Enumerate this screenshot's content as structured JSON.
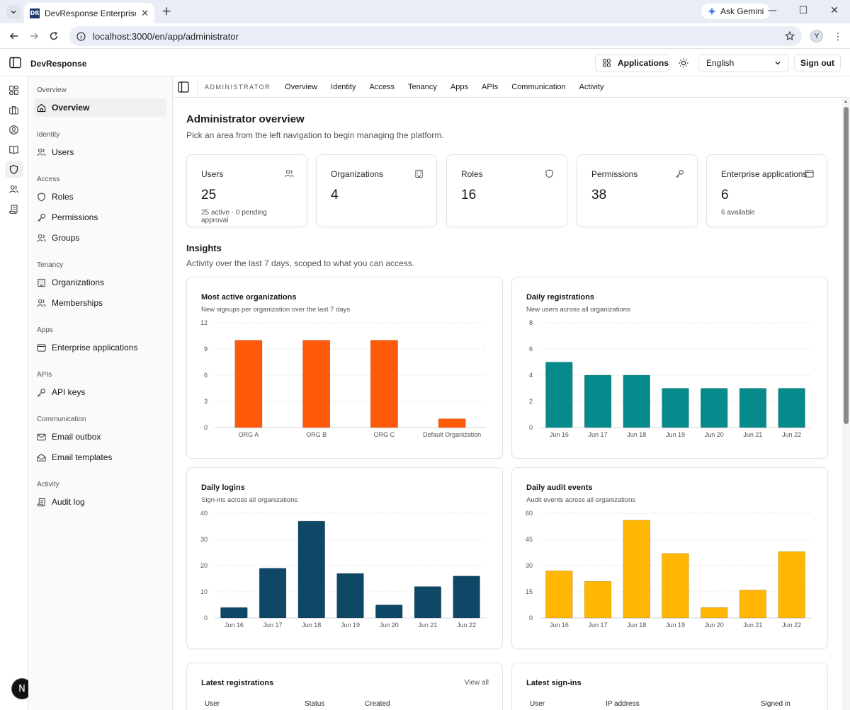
{
  "browser": {
    "tab_title": "DevResponse Enterprise",
    "favicon_text": "DR",
    "gemini_label": "Ask Gemini",
    "url": "localhost:3000/en/app/administrator",
    "profile_initial": "Y"
  },
  "header": {
    "brand": "DevResponse",
    "applications_label": "Applications",
    "language": "English",
    "signout_label": "Sign out"
  },
  "sidebar": {
    "groups": [
      {
        "label": "Overview",
        "items": [
          {
            "label": "Overview",
            "icon": "home-icon",
            "active": true
          }
        ]
      },
      {
        "label": "Identity",
        "items": [
          {
            "label": "Users",
            "icon": "users-icon"
          }
        ]
      },
      {
        "label": "Access",
        "items": [
          {
            "label": "Roles",
            "icon": "shield-icon"
          },
          {
            "label": "Permissions",
            "icon": "key-icon"
          },
          {
            "label": "Groups",
            "icon": "group-icon"
          }
        ]
      },
      {
        "label": "Tenancy",
        "items": [
          {
            "label": "Organizations",
            "icon": "building-icon"
          },
          {
            "label": "Memberships",
            "icon": "users-icon"
          }
        ]
      },
      {
        "label": "Apps",
        "items": [
          {
            "label": "Enterprise applications",
            "icon": "app-window-icon"
          }
        ]
      },
      {
        "label": "APIs",
        "items": [
          {
            "label": "API keys",
            "icon": "key-round-icon"
          }
        ]
      },
      {
        "label": "Communication",
        "items": [
          {
            "label": "Email outbox",
            "icon": "mail-icon"
          },
          {
            "label": "Email templates",
            "icon": "mail-open-icon"
          }
        ]
      },
      {
        "label": "Activity",
        "items": [
          {
            "label": "Audit log",
            "icon": "scroll-icon"
          }
        ]
      }
    ]
  },
  "top_tabs": {
    "section": "ADMINISTRATOR",
    "tabs": [
      "Overview",
      "Identity",
      "Access",
      "Tenancy",
      "Apps",
      "APIs",
      "Communication",
      "Activity"
    ]
  },
  "page": {
    "title": "Administrator overview",
    "subtitle": "Pick an area from the left navigation to begin managing the platform."
  },
  "stats": [
    {
      "label": "Users",
      "value": "25",
      "hint": "25 active · 0 pending approval",
      "icon": "users-icon"
    },
    {
      "label": "Organizations",
      "value": "4",
      "hint": "",
      "icon": "building-icon"
    },
    {
      "label": "Roles",
      "value": "16",
      "hint": "",
      "icon": "shield-icon"
    },
    {
      "label": "Permissions",
      "value": "38",
      "hint": "",
      "icon": "key-icon"
    },
    {
      "label": "Enterprise applications",
      "value": "6",
      "hint": "6 available",
      "icon": "app-window-icon"
    }
  ],
  "insights": {
    "title": "Insights",
    "subtitle": "Activity over the last 7 days, scoped to what you can access."
  },
  "chart_data": [
    {
      "type": "bar",
      "title": "Most active organizations",
      "subtitle": "New signups per organization over the last 7 days",
      "categories": [
        "ORG A",
        "ORG B",
        "ORG C",
        "Default Organization"
      ],
      "values": [
        10,
        10,
        10,
        1
      ],
      "ylim": [
        0,
        12
      ],
      "yticks": [
        0,
        3,
        6,
        9,
        12
      ],
      "color": "#ff5a0a",
      "grid": true
    },
    {
      "type": "bar",
      "title": "Daily registrations",
      "subtitle": "New users across all organizations",
      "categories": [
        "Jun 16",
        "Jun 17",
        "Jun 18",
        "Jun 19",
        "Jun 20",
        "Jun 21",
        "Jun 22"
      ],
      "values": [
        5,
        4,
        4,
        3,
        3,
        3,
        3
      ],
      "ylim": [
        0,
        8
      ],
      "yticks": [
        0,
        2,
        4,
        6,
        8
      ],
      "color": "#078a8c",
      "grid": true
    },
    {
      "type": "bar",
      "title": "Daily logins",
      "subtitle": "Sign-ins across all organizations",
      "categories": [
        "Jun 16",
        "Jun 17",
        "Jun 18",
        "Jun 19",
        "Jun 20",
        "Jun 21",
        "Jun 22"
      ],
      "values": [
        4,
        19,
        37,
        17,
        5,
        12,
        16
      ],
      "ylim": [
        0,
        40
      ],
      "yticks": [
        0,
        10,
        20,
        30,
        40
      ],
      "color": "#0e4866",
      "grid": true
    },
    {
      "type": "bar",
      "title": "Daily audit events",
      "subtitle": "Audit events across all organizations",
      "categories": [
        "Jun 16",
        "Jun 17",
        "Jun 18",
        "Jun 19",
        "Jun 20",
        "Jun 21",
        "Jun 22"
      ],
      "values": [
        27,
        21,
        56,
        37,
        6,
        16,
        38
      ],
      "ylim": [
        0,
        60
      ],
      "yticks": [
        0,
        15,
        30,
        45,
        60
      ],
      "color": "#ffb703",
      "grid": true
    }
  ],
  "tables": [
    {
      "title": "Latest registrations",
      "action": "View all",
      "columns": [
        "User",
        "Status",
        "Created"
      ]
    },
    {
      "title": "Latest sign-ins",
      "action": "",
      "columns": [
        "User",
        "IP address",
        "Signed in"
      ]
    }
  ],
  "dev_badge": "N"
}
